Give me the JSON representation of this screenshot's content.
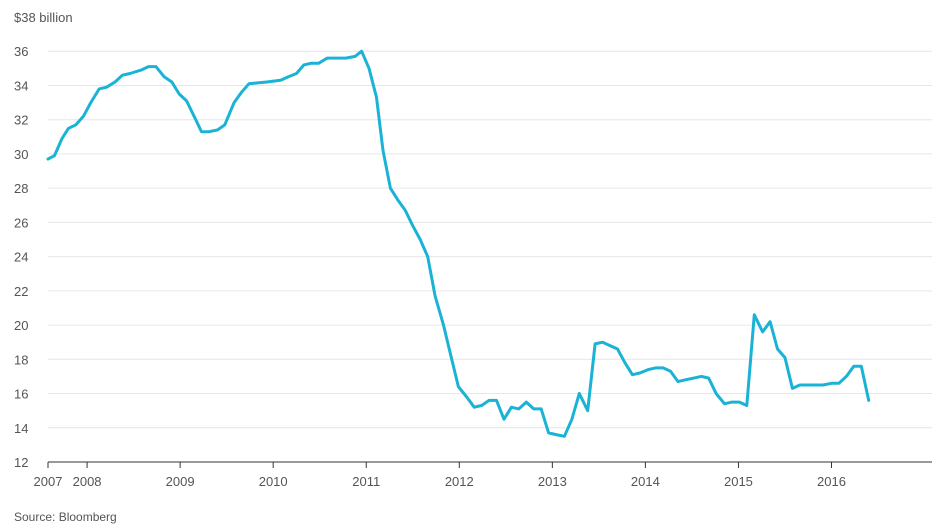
{
  "chart_data": {
    "type": "line",
    "y_unit_label": "$38 billion",
    "ylim": [
      12,
      38
    ],
    "yticks": [
      12,
      14,
      16,
      18,
      20,
      22,
      24,
      26,
      28,
      30,
      32,
      34,
      36
    ],
    "xlim": [
      2007.0,
      2016.5
    ],
    "xticks": [
      {
        "value": 2007,
        "label": "2007"
      },
      {
        "value": 2007.42,
        "label": "2008"
      },
      {
        "value": 2008.42,
        "label": "2009"
      },
      {
        "value": 2009.42,
        "label": "2010"
      },
      {
        "value": 2010.42,
        "label": "2011"
      },
      {
        "value": 2011.42,
        "label": "2012"
      },
      {
        "value": 2012.42,
        "label": "2013"
      },
      {
        "value": 2013.42,
        "label": "2014"
      },
      {
        "value": 2014.42,
        "label": "2015"
      },
      {
        "value": 2015.42,
        "label": "2016"
      }
    ],
    "grid": true,
    "series": [
      {
        "color": "#1ab3d6",
        "points": [
          [
            2007.0,
            29.7
          ],
          [
            2007.07,
            29.9
          ],
          [
            2007.15,
            30.9
          ],
          [
            2007.22,
            31.5
          ],
          [
            2007.3,
            31.7
          ],
          [
            2007.38,
            32.2
          ],
          [
            2007.46,
            33.0
          ],
          [
            2007.55,
            33.8
          ],
          [
            2007.63,
            33.9
          ],
          [
            2007.72,
            34.2
          ],
          [
            2007.8,
            34.6
          ],
          [
            2007.88,
            34.7
          ],
          [
            2008.0,
            34.9
          ],
          [
            2008.08,
            35.1
          ],
          [
            2008.16,
            35.1
          ],
          [
            2008.25,
            34.5
          ],
          [
            2008.33,
            34.2
          ],
          [
            2008.41,
            33.5
          ],
          [
            2008.49,
            33.1
          ],
          [
            2008.57,
            32.2
          ],
          [
            2008.65,
            31.3
          ],
          [
            2008.73,
            31.3
          ],
          [
            2008.82,
            31.4
          ],
          [
            2008.9,
            31.7
          ],
          [
            2009.0,
            33.0
          ],
          [
            2009.08,
            33.6
          ],
          [
            2009.16,
            34.1
          ],
          [
            2009.35,
            34.2
          ],
          [
            2009.5,
            34.3
          ],
          [
            2009.58,
            34.5
          ],
          [
            2009.67,
            34.7
          ],
          [
            2009.75,
            35.2
          ],
          [
            2009.83,
            35.3
          ],
          [
            2009.91,
            35.3
          ],
          [
            2010.0,
            35.6
          ],
          [
            2010.1,
            35.6
          ],
          [
            2010.2,
            35.6
          ],
          [
            2010.3,
            35.7
          ],
          [
            2010.37,
            36.0
          ],
          [
            2010.45,
            35.0
          ],
          [
            2010.53,
            33.3
          ],
          [
            2010.6,
            30.2
          ],
          [
            2010.68,
            28.0
          ],
          [
            2010.76,
            27.3
          ],
          [
            2010.84,
            26.7
          ],
          [
            2010.92,
            25.8
          ],
          [
            2011.0,
            25.0
          ],
          [
            2011.08,
            24.0
          ],
          [
            2011.16,
            21.7
          ],
          [
            2011.25,
            20.0
          ],
          [
            2011.33,
            18.2
          ],
          [
            2011.41,
            16.4
          ],
          [
            2011.5,
            15.8
          ],
          [
            2011.58,
            15.2
          ],
          [
            2011.66,
            15.3
          ],
          [
            2011.74,
            15.6
          ],
          [
            2011.82,
            15.6
          ],
          [
            2011.9,
            14.5
          ],
          [
            2011.98,
            15.2
          ],
          [
            2012.06,
            15.1
          ],
          [
            2012.14,
            15.5
          ],
          [
            2012.22,
            15.1
          ],
          [
            2012.3,
            15.1
          ],
          [
            2012.38,
            13.7
          ],
          [
            2012.46,
            13.6
          ],
          [
            2012.55,
            13.5
          ],
          [
            2012.63,
            14.5
          ],
          [
            2012.71,
            16.0
          ],
          [
            2012.8,
            15.0
          ],
          [
            2012.88,
            18.9
          ],
          [
            2012.96,
            19.0
          ],
          [
            2013.04,
            18.8
          ],
          [
            2013.12,
            18.6
          ],
          [
            2013.2,
            17.8
          ],
          [
            2013.28,
            17.1
          ],
          [
            2013.36,
            17.2
          ],
          [
            2013.45,
            17.4
          ],
          [
            2013.53,
            17.5
          ],
          [
            2013.61,
            17.5
          ],
          [
            2013.69,
            17.3
          ],
          [
            2013.77,
            16.7
          ],
          [
            2013.85,
            16.8
          ],
          [
            2013.94,
            16.9
          ],
          [
            2014.02,
            17.0
          ],
          [
            2014.1,
            16.9
          ],
          [
            2014.18,
            16.0
          ],
          [
            2014.27,
            15.4
          ],
          [
            2014.35,
            15.5
          ],
          [
            2014.43,
            15.5
          ],
          [
            2014.51,
            15.3
          ],
          [
            2014.59,
            20.6
          ],
          [
            2014.68,
            19.6
          ],
          [
            2014.76,
            20.2
          ],
          [
            2014.84,
            18.6
          ],
          [
            2014.92,
            18.1
          ],
          [
            2015.0,
            16.3
          ],
          [
            2015.08,
            16.5
          ],
          [
            2015.16,
            16.5
          ],
          [
            2015.25,
            16.5
          ],
          [
            2015.33,
            16.5
          ],
          [
            2015.42,
            16.6
          ],
          [
            2015.5,
            16.6
          ],
          [
            2015.58,
            17.0
          ],
          [
            2015.66,
            17.6
          ],
          [
            2015.74,
            17.6
          ],
          [
            2015.82,
            15.6
          ]
        ]
      }
    ]
  },
  "source": "Source: Bloomberg"
}
